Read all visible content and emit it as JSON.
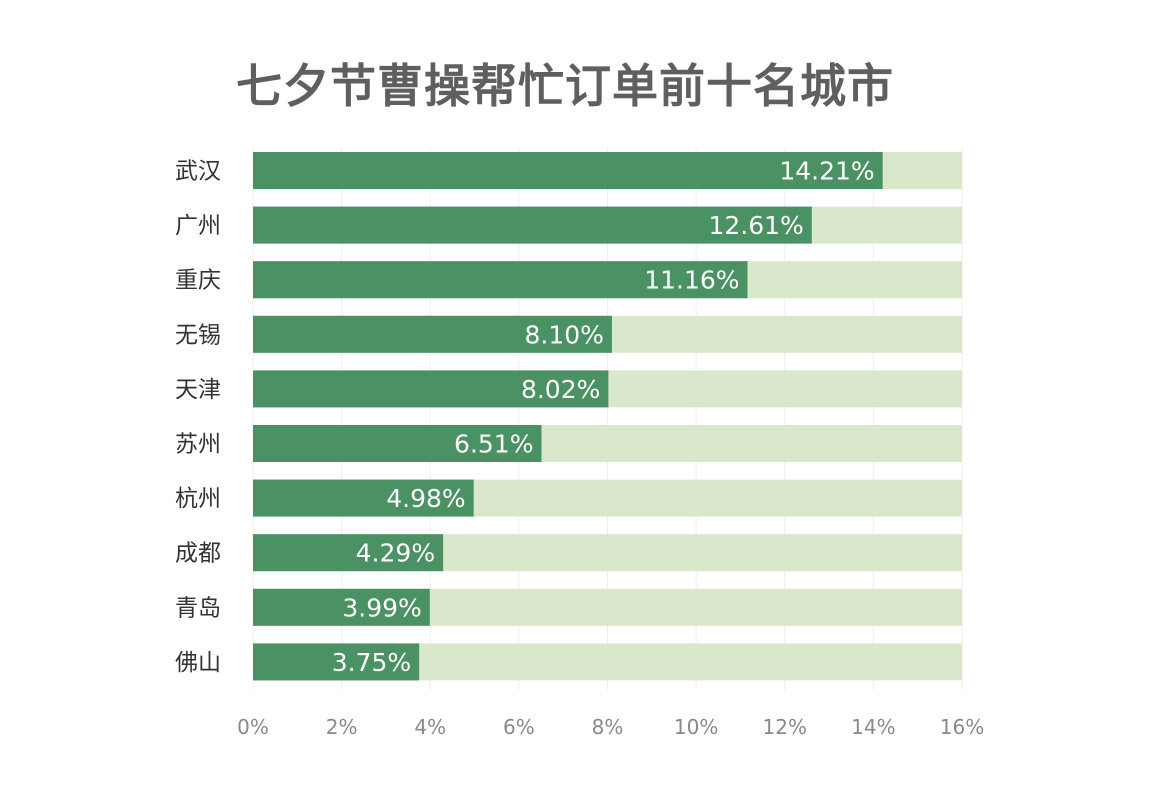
{
  "chart_data": {
    "type": "bar",
    "orientation": "horizontal",
    "title": "七夕节曹操帮忙订单前十名城市",
    "xlabel": "",
    "ylabel": "",
    "categories": [
      "武汉",
      "广州",
      "重庆",
      "无锡",
      "天津",
      "苏州",
      "杭州",
      "成都",
      "青岛",
      "佛山"
    ],
    "values": [
      14.21,
      12.61,
      11.16,
      8.1,
      8.02,
      6.51,
      4.98,
      4.29,
      3.99,
      3.75
    ],
    "value_labels": [
      "14.21%",
      "12.61%",
      "11.16%",
      "8.10%",
      "8.02%",
      "6.51%",
      "4.98%",
      "4.29%",
      "3.99%",
      "3.75%"
    ],
    "xlim": [
      0,
      16
    ],
    "x_ticks": [
      0,
      2,
      4,
      6,
      8,
      10,
      12,
      14,
      16
    ],
    "x_tick_labels": [
      "0%",
      "2%",
      "4%",
      "6%",
      "8%",
      "10%",
      "12%",
      "14%",
      "16%"
    ],
    "grid": true,
    "legend": "none",
    "colors": {
      "bar": "#4a9163",
      "track": "#d9e8cb",
      "grid": "#eeeeee",
      "title": "#5f5f5f",
      "category_label": "#333333",
      "tick_label": "#8a8a8a",
      "value_label": "#ffffff"
    }
  }
}
